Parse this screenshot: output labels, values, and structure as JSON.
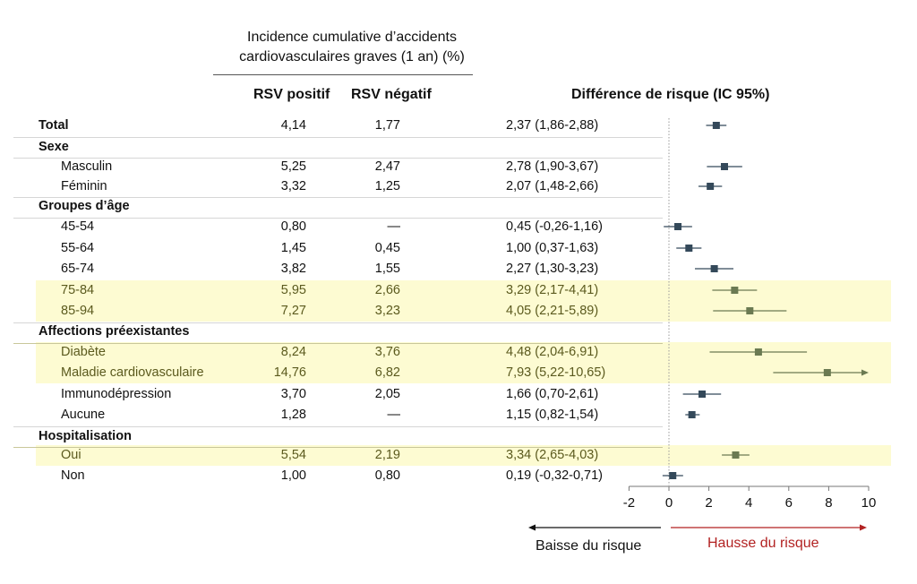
{
  "header": {
    "incidence_title_line1": "Incidence cumulative d’accidents",
    "incidence_title_line2": "cardiovasculaires graves (1 an) (%)",
    "col_positive": "RSV positif",
    "col_negative": "RSV négatif",
    "col_diff": "Différence de risque (IC 95%)"
  },
  "legend": {
    "decrease": "Baisse du risque",
    "increase": "Hausse du risque"
  },
  "colors": {
    "marker_default": "#34495a",
    "marker_highlight": "#6b7a52",
    "highlight_band": "#fdfbd2",
    "highlight_text": "#5b5a1e",
    "increase_arrow": "#b22222",
    "decrease_arrow": "#111111"
  },
  "rows": [
    {
      "label": "Total",
      "type": "total",
      "pos": "4,14",
      "neg": "1,77",
      "diff": "2,37 (1,86-2,88)"
    },
    {
      "label": "Sexe",
      "type": "group"
    },
    {
      "label": "Masculin",
      "type": "item",
      "pos": "5,25",
      "neg": "2,47",
      "diff": "2,78 (1,90-3,67)"
    },
    {
      "label": "Féminin",
      "type": "item",
      "pos": "3,32",
      "neg": "1,25",
      "diff": "2,07 (1,48-2,66)"
    },
    {
      "label": "Groupes d’âge",
      "type": "group"
    },
    {
      "label": "45-54",
      "type": "item",
      "pos": "0,80",
      "neg": "—",
      "diff": "0,45 (-0,26-1,16)"
    },
    {
      "label": "55-64",
      "type": "item",
      "pos": "1,45",
      "neg": "0,45",
      "diff": "1,00 (0,37-1,63)"
    },
    {
      "label": "65-74",
      "type": "item",
      "pos": "3,82",
      "neg": "1,55",
      "diff": "2,27 (1,30-3,23)"
    },
    {
      "label": "75-84",
      "type": "item",
      "highlight": true,
      "pos": "5,95",
      "neg": "2,66",
      "diff": "3,29 (2,17-4,41)"
    },
    {
      "label": "85-94",
      "type": "item",
      "highlight": true,
      "pos": "7,27",
      "neg": "3,23",
      "diff": "4,05 (2,21-5,89)"
    },
    {
      "label": "Affections préexistantes",
      "type": "group"
    },
    {
      "label": "Diabète",
      "type": "item",
      "highlight": true,
      "pos": "8,24",
      "neg": "3,76",
      "diff": "4,48 (2,04-6,91)"
    },
    {
      "label": "Maladie cardiovasculaire",
      "type": "item",
      "highlight": true,
      "pos": "14,76",
      "neg": "6,82",
      "diff": "7,93 (5,22-10,65)"
    },
    {
      "label": "Immunodépression",
      "type": "item",
      "pos": "3,70",
      "neg": "2,05",
      "diff": "1,66 (0,70-2,61)"
    },
    {
      "label": "Aucune",
      "type": "item",
      "pos": "1,28",
      "neg": "—",
      "diff": "1,15 (0,82-1,54)"
    },
    {
      "label": "Hospitalisation",
      "type": "group"
    },
    {
      "label": "Oui",
      "type": "item",
      "highlight": true,
      "pos": "5,54",
      "neg": "2,19",
      "diff": "3,34 (2,65-4,03)"
    },
    {
      "label": "Non",
      "type": "item",
      "pos": "1,00",
      "neg": "0,80",
      "diff": "0,19 (-0,32-0,71)"
    }
  ],
  "chart_data": {
    "type": "forest",
    "title": "Différence de risque (IC 95%)",
    "xlabel": "",
    "xlim": [
      -2,
      10
    ],
    "xticks": [
      -2,
      0,
      2,
      4,
      6,
      8,
      10
    ],
    "reference_line": 0,
    "grid": false,
    "points": [
      {
        "label": "Total",
        "est": 2.37,
        "lo": 1.86,
        "hi": 2.88,
        "highlight": false
      },
      {
        "label": "Masculin",
        "est": 2.78,
        "lo": 1.9,
        "hi": 3.67,
        "highlight": false
      },
      {
        "label": "Féminin",
        "est": 2.07,
        "lo": 1.48,
        "hi": 2.66,
        "highlight": false
      },
      {
        "label": "45-54",
        "est": 0.45,
        "lo": -0.26,
        "hi": 1.16,
        "highlight": false
      },
      {
        "label": "55-64",
        "est": 1.0,
        "lo": 0.37,
        "hi": 1.63,
        "highlight": false
      },
      {
        "label": "65-74",
        "est": 2.27,
        "lo": 1.3,
        "hi": 3.23,
        "highlight": false
      },
      {
        "label": "75-84",
        "est": 3.29,
        "lo": 2.17,
        "hi": 4.41,
        "highlight": true
      },
      {
        "label": "85-94",
        "est": 4.05,
        "lo": 2.21,
        "hi": 5.89,
        "highlight": true
      },
      {
        "label": "Diabète",
        "est": 4.48,
        "lo": 2.04,
        "hi": 6.91,
        "highlight": true
      },
      {
        "label": "Maladie cardiovasculaire",
        "est": 7.93,
        "lo": 5.22,
        "hi": 10.65,
        "highlight": true,
        "arrow_right": true
      },
      {
        "label": "Immunodépression",
        "est": 1.66,
        "lo": 0.7,
        "hi": 2.61,
        "highlight": false
      },
      {
        "label": "Aucune",
        "est": 1.15,
        "lo": 0.82,
        "hi": 1.54,
        "highlight": false
      },
      {
        "label": "Oui",
        "est": 3.34,
        "lo": 2.65,
        "hi": 4.03,
        "highlight": true
      },
      {
        "label": "Non",
        "est": 0.19,
        "lo": -0.32,
        "hi": 0.71,
        "highlight": false
      }
    ]
  }
}
